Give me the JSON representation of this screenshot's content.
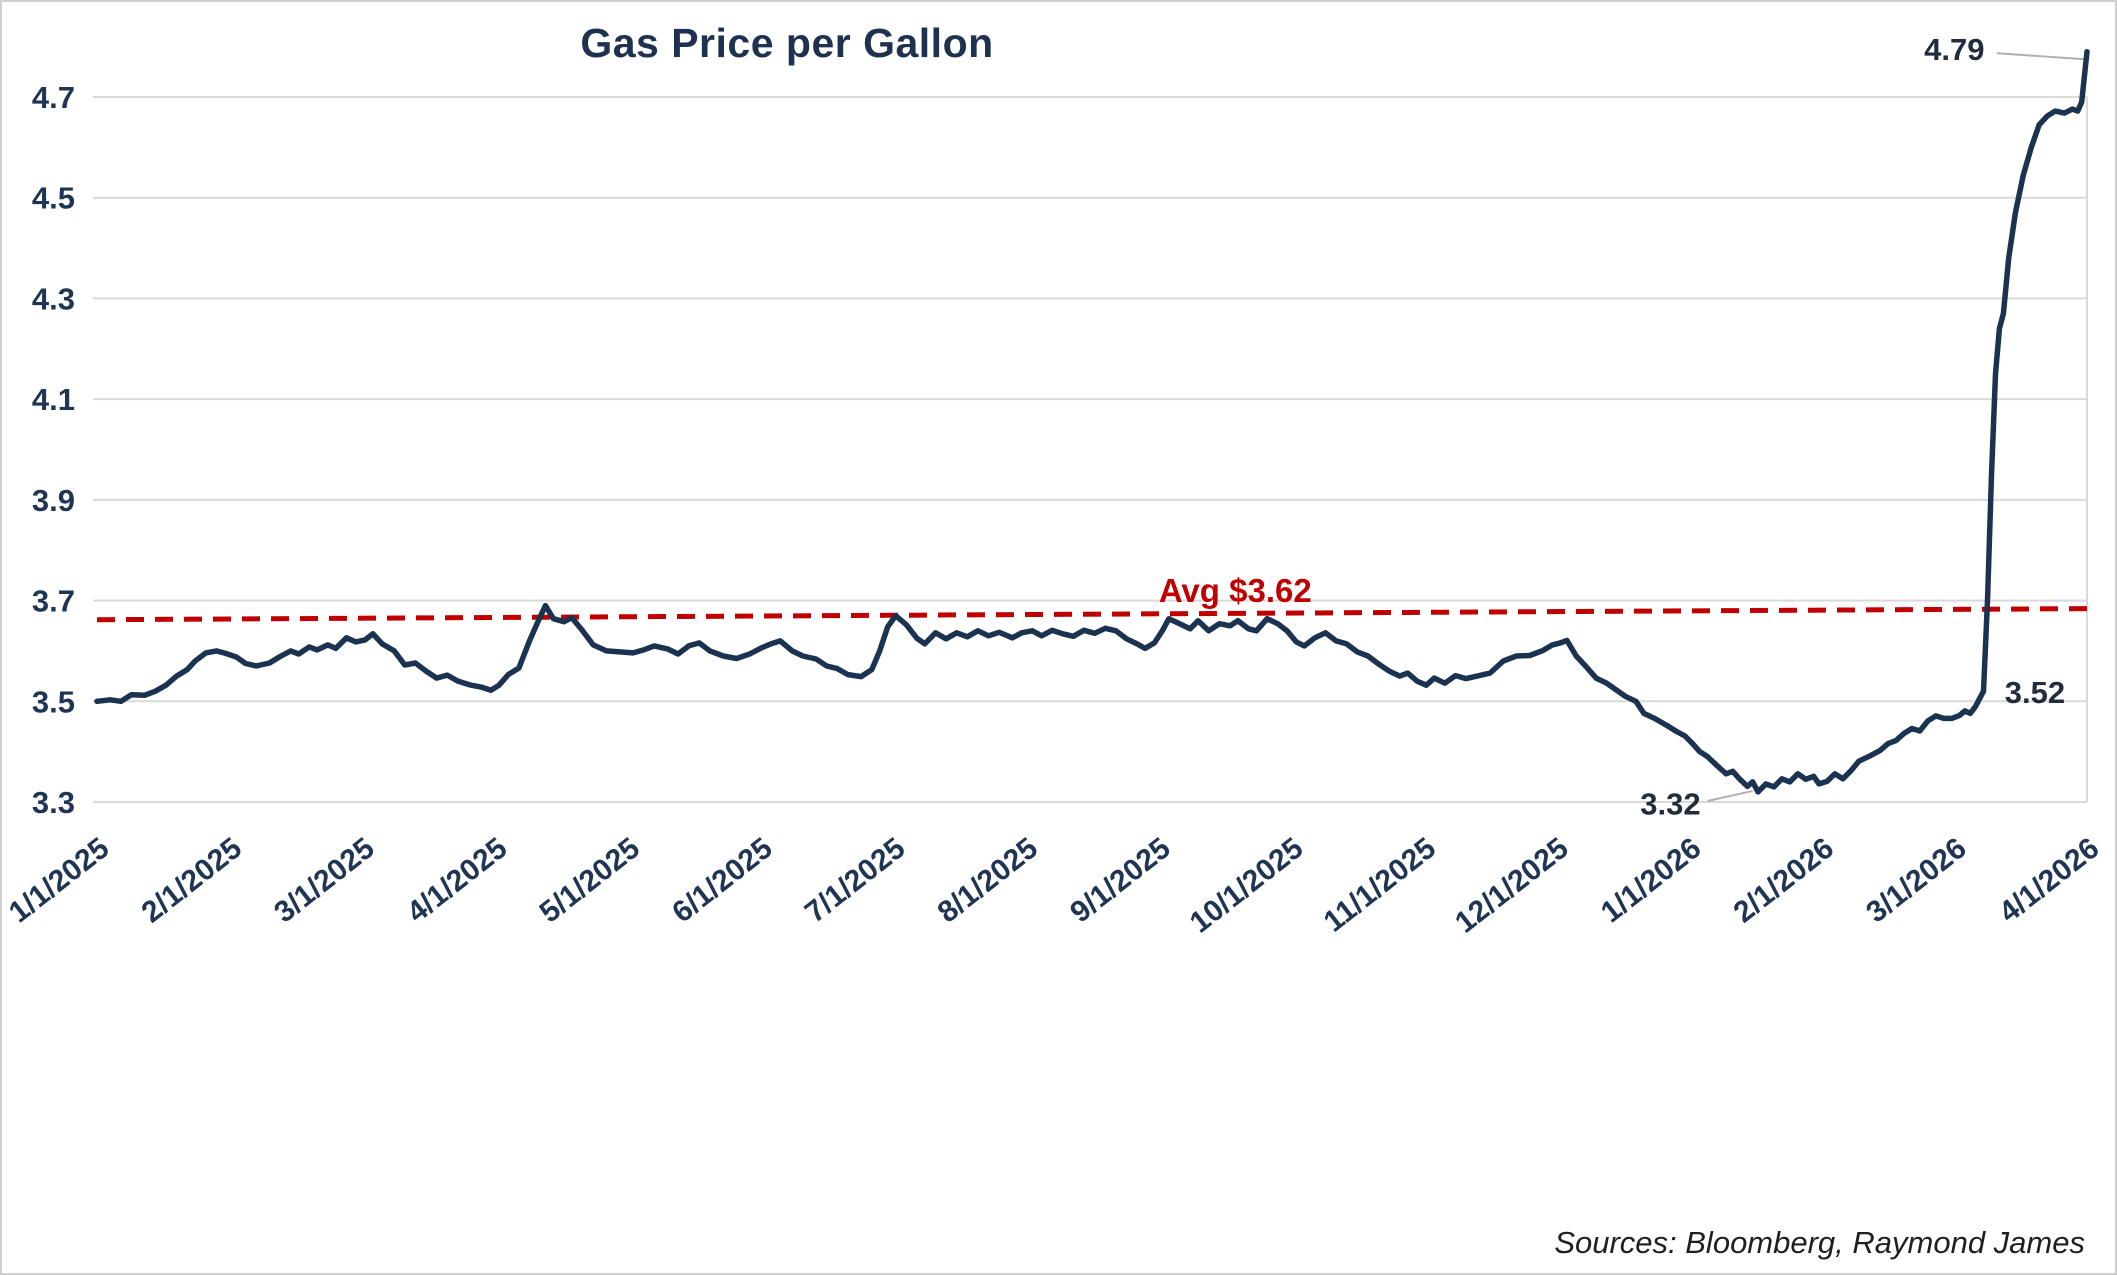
{
  "chart_data": {
    "type": "line",
    "title": "Gas Price per Gallon",
    "source_note": "Sources: Bloomberg, Raymond James",
    "ylim": [
      3.3,
      4.7
    ],
    "x_range": [
      0,
      15
    ],
    "grid": true,
    "y_ticks": [
      "3.3",
      "3.5",
      "3.7",
      "3.9",
      "4.1",
      "4.3",
      "4.5",
      "4.7"
    ],
    "x_tick_labels": [
      "1/1/2025",
      "2/1/2025",
      "3/1/2025",
      "4/1/2025",
      "5/1/2025",
      "6/1/2025",
      "7/1/2025",
      "8/1/2025",
      "9/1/2025",
      "10/1/2025",
      "11/1/2025",
      "12/1/2025",
      "1/1/2026",
      "2/1/2026",
      "3/1/2026",
      "4/1/2026"
    ],
    "colors": {
      "line": "#1b3350",
      "grid": "#d9d9d9",
      "axis_text": "#1f3553",
      "annotation": "#212c3d",
      "leader": "#b0b0b0",
      "title": "#1e3250"
    },
    "series": {
      "name": "Gas Price per Gallon",
      "color": "#1b3350",
      "points": [
        [
          0,
          3.5
        ],
        [
          0.1,
          3.503
        ],
        [
          0.18,
          3.5
        ],
        [
          0.26,
          3.513
        ],
        [
          0.36,
          3.512
        ],
        [
          0.44,
          3.52
        ],
        [
          0.52,
          3.532
        ],
        [
          0.6,
          3.55
        ],
        [
          0.68,
          3.563
        ],
        [
          0.74,
          3.58
        ],
        [
          0.82,
          3.596
        ],
        [
          0.9,
          3.6
        ],
        [
          0.97,
          3.595
        ],
        [
          1.05,
          3.588
        ],
        [
          1.12,
          3.575
        ],
        [
          1.2,
          3.57
        ],
        [
          1.3,
          3.576
        ],
        [
          1.38,
          3.589
        ],
        [
          1.46,
          3.6
        ],
        [
          1.52,
          3.594
        ],
        [
          1.6,
          3.608
        ],
        [
          1.66,
          3.602
        ],
        [
          1.74,
          3.612
        ],
        [
          1.8,
          3.605
        ],
        [
          1.88,
          3.626
        ],
        [
          1.95,
          3.618
        ],
        [
          2.02,
          3.622
        ],
        [
          2.08,
          3.634
        ],
        [
          2.15,
          3.614
        ],
        [
          2.24,
          3.6
        ],
        [
          2.32,
          3.572
        ],
        [
          2.4,
          3.576
        ],
        [
          2.48,
          3.56
        ],
        [
          2.56,
          3.546
        ],
        [
          2.64,
          3.552
        ],
        [
          2.72,
          3.54
        ],
        [
          2.82,
          3.532
        ],
        [
          2.9,
          3.528
        ],
        [
          2.97,
          3.522
        ],
        [
          3.03,
          3.532
        ],
        [
          3.1,
          3.553
        ],
        [
          3.18,
          3.566
        ],
        [
          3.26,
          3.62
        ],
        [
          3.32,
          3.656
        ],
        [
          3.38,
          3.69
        ],
        [
          3.44,
          3.664
        ],
        [
          3.52,
          3.658
        ],
        [
          3.58,
          3.666
        ],
        [
          3.66,
          3.64
        ],
        [
          3.74,
          3.612
        ],
        [
          3.84,
          3.6
        ],
        [
          3.94,
          3.598
        ],
        [
          4.04,
          3.596
        ],
        [
          4.12,
          3.602
        ],
        [
          4.2,
          3.61
        ],
        [
          4.3,
          3.604
        ],
        [
          4.38,
          3.594
        ],
        [
          4.46,
          3.61
        ],
        [
          4.54,
          3.616
        ],
        [
          4.62,
          3.6
        ],
        [
          4.72,
          3.59
        ],
        [
          4.82,
          3.585
        ],
        [
          4.92,
          3.594
        ],
        [
          5,
          3.605
        ],
        [
          5.08,
          3.614
        ],
        [
          5.15,
          3.62
        ],
        [
          5.24,
          3.6
        ],
        [
          5.32,
          3.59
        ],
        [
          5.42,
          3.584
        ],
        [
          5.5,
          3.57
        ],
        [
          5.58,
          3.565
        ],
        [
          5.66,
          3.553
        ],
        [
          5.76,
          3.549
        ],
        [
          5.84,
          3.563
        ],
        [
          5.9,
          3.6
        ],
        [
          5.96,
          3.648
        ],
        [
          6.02,
          3.67
        ],
        [
          6.1,
          3.652
        ],
        [
          6.18,
          3.625
        ],
        [
          6.24,
          3.614
        ],
        [
          6.32,
          3.636
        ],
        [
          6.4,
          3.624
        ],
        [
          6.48,
          3.636
        ],
        [
          6.56,
          3.628
        ],
        [
          6.64,
          3.64
        ],
        [
          6.72,
          3.63
        ],
        [
          6.8,
          3.637
        ],
        [
          6.9,
          3.626
        ],
        [
          6.97,
          3.636
        ],
        [
          7.05,
          3.64
        ],
        [
          7.12,
          3.63
        ],
        [
          7.2,
          3.641
        ],
        [
          7.28,
          3.634
        ],
        [
          7.36,
          3.629
        ],
        [
          7.44,
          3.641
        ],
        [
          7.52,
          3.635
        ],
        [
          7.6,
          3.645
        ],
        [
          7.68,
          3.64
        ],
        [
          7.76,
          3.624
        ],
        [
          7.84,
          3.614
        ],
        [
          7.9,
          3.605
        ],
        [
          7.97,
          3.616
        ],
        [
          8.03,
          3.64
        ],
        [
          8.08,
          3.664
        ],
        [
          8.16,
          3.654
        ],
        [
          8.24,
          3.644
        ],
        [
          8.3,
          3.66
        ],
        [
          8.38,
          3.64
        ],
        [
          8.46,
          3.654
        ],
        [
          8.54,
          3.65
        ],
        [
          8.6,
          3.66
        ],
        [
          8.68,
          3.644
        ],
        [
          8.74,
          3.64
        ],
        [
          8.82,
          3.664
        ],
        [
          8.9,
          3.654
        ],
        [
          8.97,
          3.64
        ],
        [
          9.04,
          3.618
        ],
        [
          9.1,
          3.61
        ],
        [
          9.18,
          3.626
        ],
        [
          9.26,
          3.636
        ],
        [
          9.34,
          3.62
        ],
        [
          9.42,
          3.614
        ],
        [
          9.5,
          3.598
        ],
        [
          9.58,
          3.59
        ],
        [
          9.66,
          3.574
        ],
        [
          9.74,
          3.56
        ],
        [
          9.82,
          3.55
        ],
        [
          9.88,
          3.556
        ],
        [
          9.95,
          3.54
        ],
        [
          10.02,
          3.532
        ],
        [
          10.08,
          3.546
        ],
        [
          10.16,
          3.536
        ],
        [
          10.24,
          3.551
        ],
        [
          10.32,
          3.545
        ],
        [
          10.42,
          3.551
        ],
        [
          10.5,
          3.556
        ],
        [
          10.6,
          3.58
        ],
        [
          10.7,
          3.59
        ],
        [
          10.8,
          3.591
        ],
        [
          10.9,
          3.601
        ],
        [
          10.97,
          3.612
        ],
        [
          11.03,
          3.616
        ],
        [
          11.08,
          3.621
        ],
        [
          11.15,
          3.59
        ],
        [
          11.22,
          3.57
        ],
        [
          11.3,
          3.546
        ],
        [
          11.38,
          3.536
        ],
        [
          11.46,
          3.521
        ],
        [
          11.52,
          3.51
        ],
        [
          11.6,
          3.5
        ],
        [
          11.66,
          3.476
        ],
        [
          11.74,
          3.466
        ],
        [
          11.84,
          3.451
        ],
        [
          11.9,
          3.441
        ],
        [
          11.97,
          3.431
        ],
        [
          12.03,
          3.415
        ],
        [
          12.08,
          3.4
        ],
        [
          12.14,
          3.39
        ],
        [
          12.22,
          3.37
        ],
        [
          12.28,
          3.356
        ],
        [
          12.33,
          3.361
        ],
        [
          12.38,
          3.346
        ],
        [
          12.44,
          3.331
        ],
        [
          12.48,
          3.34
        ],
        [
          12.52,
          3.32
        ],
        [
          12.58,
          3.336
        ],
        [
          12.64,
          3.33
        ],
        [
          12.7,
          3.346
        ],
        [
          12.76,
          3.34
        ],
        [
          12.82,
          3.356
        ],
        [
          12.88,
          3.345
        ],
        [
          12.94,
          3.351
        ],
        [
          12.98,
          3.336
        ],
        [
          13.04,
          3.341
        ],
        [
          13.1,
          3.356
        ],
        [
          13.16,
          3.346
        ],
        [
          13.22,
          3.362
        ],
        [
          13.28,
          3.381
        ],
        [
          13.36,
          3.391
        ],
        [
          13.44,
          3.402
        ],
        [
          13.5,
          3.416
        ],
        [
          13.56,
          3.422
        ],
        [
          13.62,
          3.436
        ],
        [
          13.68,
          3.446
        ],
        [
          13.74,
          3.441
        ],
        [
          13.8,
          3.461
        ],
        [
          13.86,
          3.471
        ],
        [
          13.92,
          3.466
        ],
        [
          13.98,
          3.466
        ],
        [
          14.04,
          3.472
        ],
        [
          14.08,
          3.481
        ],
        [
          14.12,
          3.476
        ],
        [
          14.16,
          3.49
        ],
        [
          14.19,
          3.505
        ],
        [
          14.22,
          3.52
        ],
        [
          14.25,
          3.7
        ],
        [
          14.28,
          3.95
        ],
        [
          14.31,
          4.15
        ],
        [
          14.34,
          4.24
        ],
        [
          14.37,
          4.27
        ],
        [
          14.41,
          4.38
        ],
        [
          14.46,
          4.47
        ],
        [
          14.52,
          4.545
        ],
        [
          14.58,
          4.6
        ],
        [
          14.64,
          4.645
        ],
        [
          14.7,
          4.662
        ],
        [
          14.76,
          4.672
        ],
        [
          14.83,
          4.668
        ],
        [
          14.89,
          4.676
        ],
        [
          14.93,
          4.672
        ],
        [
          14.96,
          4.69
        ],
        [
          15,
          4.79
        ]
      ]
    },
    "average_line": {
      "label": "Avg $3.62",
      "value": 3.62,
      "color": "#c00000",
      "draw": {
        "t1": 0,
        "v1": 3.662,
        "t2": 15.03,
        "v2": 3.684
      },
      "label_pos": {
        "t": 8.58,
        "v": 3.719
      }
    },
    "annotations": [
      {
        "text": "4.79",
        "t": 14.0,
        "v": 4.795,
        "anchor": "middle"
      },
      {
        "text": "3.52",
        "t": 14.38,
        "v": 3.518,
        "anchor": "start"
      },
      {
        "text": "3.32",
        "t": 11.86,
        "v": 3.297,
        "anchor": "middle"
      }
    ],
    "leader_lines": [
      {
        "t1": 14.32,
        "v1": 4.787,
        "t2": 14.98,
        "v2": 4.775
      },
      {
        "t1": 12.14,
        "v1": 3.302,
        "t2": 12.48,
        "v2": 3.322
      }
    ]
  }
}
